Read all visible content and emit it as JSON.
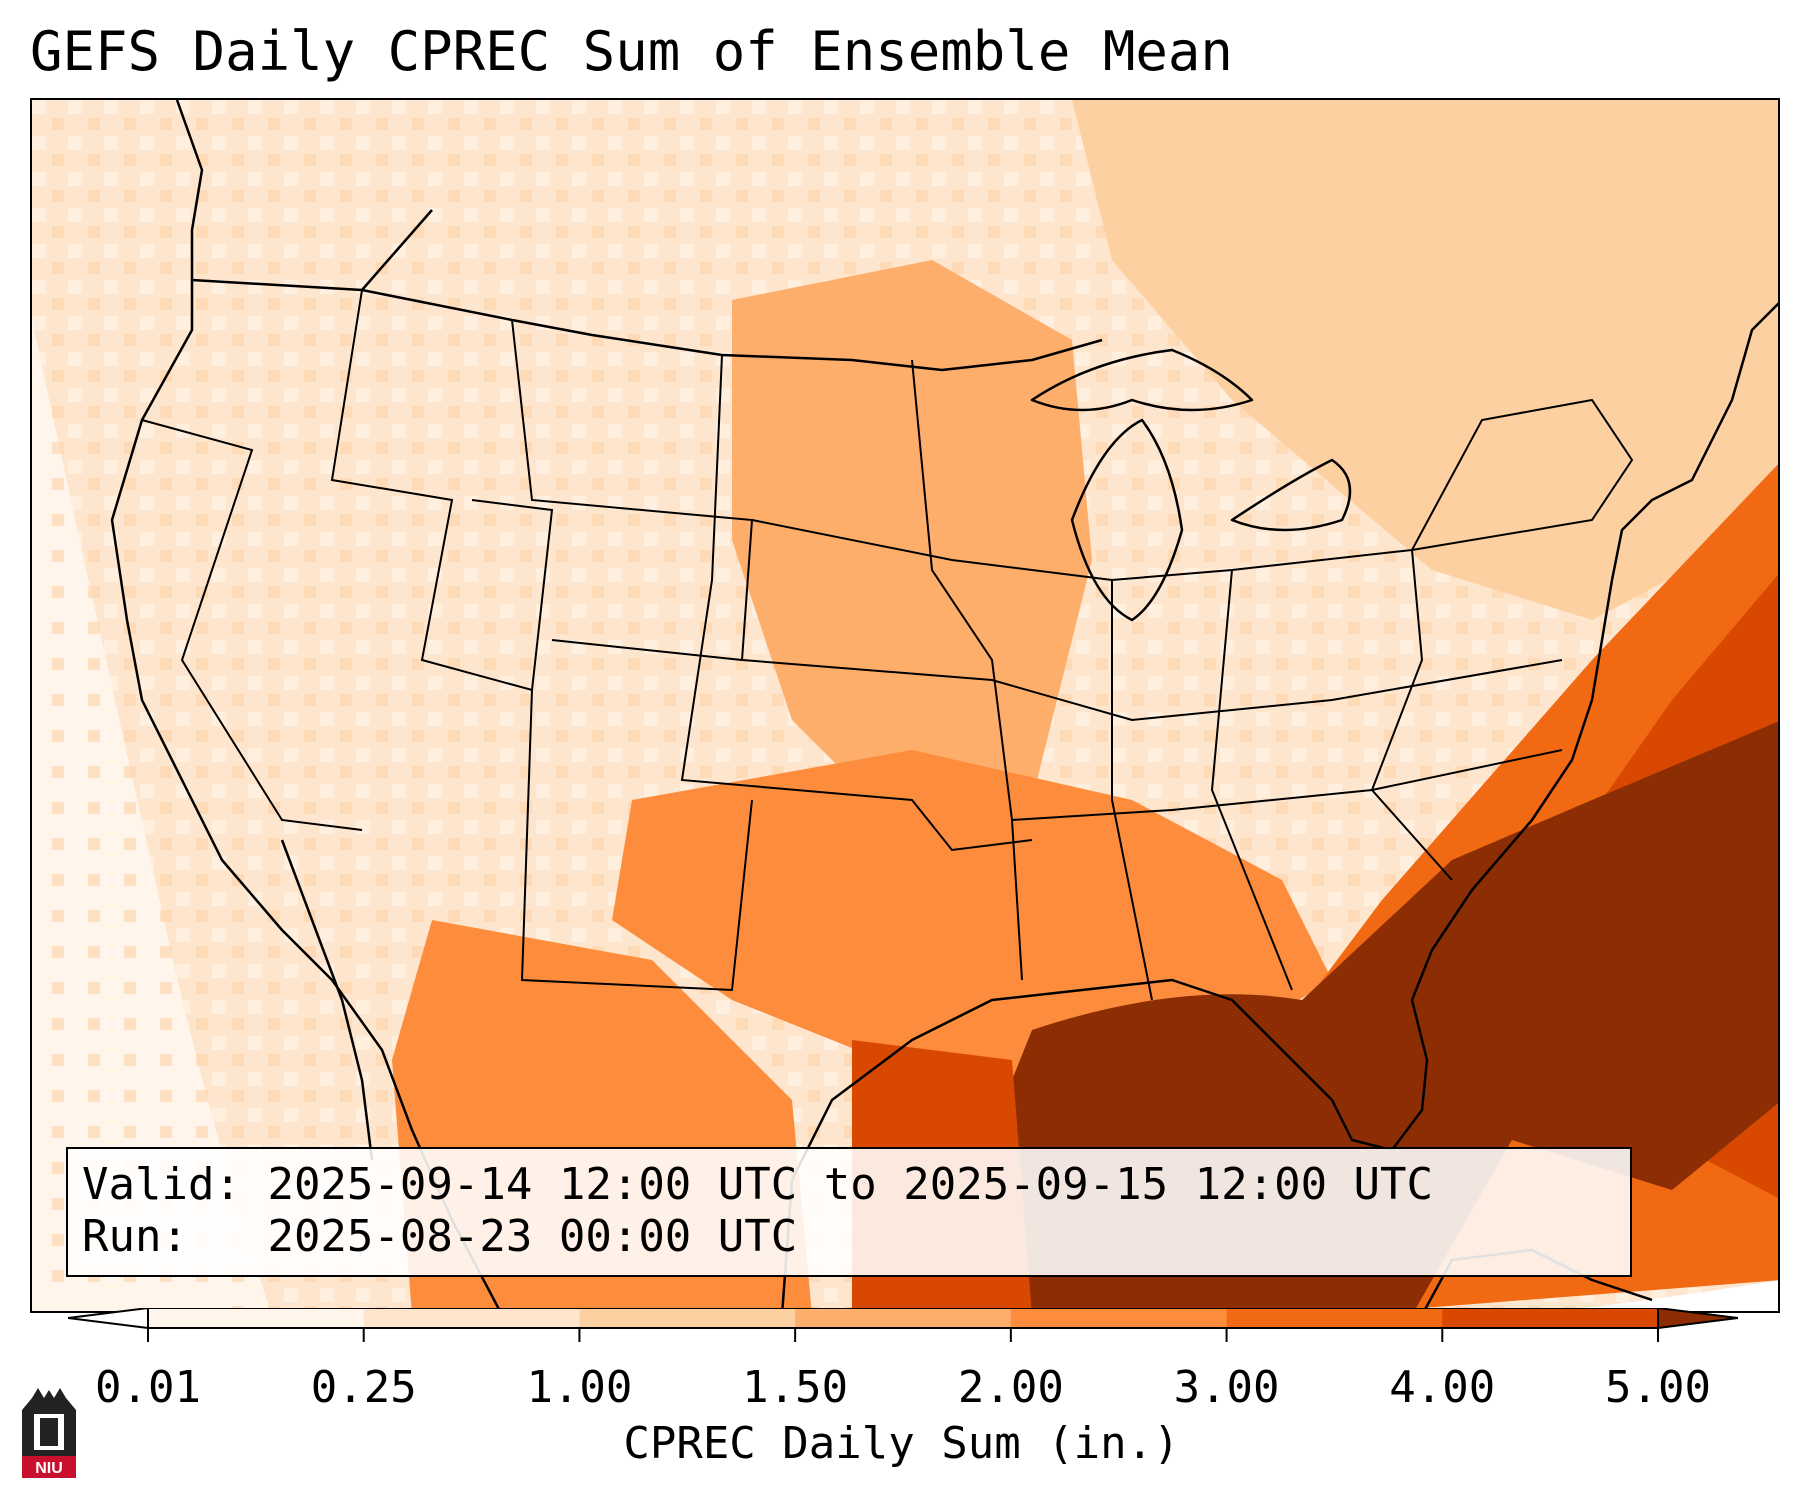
{
  "title": "GEFS Daily CPREC Sum of Ensemble Mean",
  "info": {
    "valid_label": "Valid:",
    "valid_value": "2025-09-14 12:00 UTC to 2025-09-15 12:00 UTC",
    "run_label": "Run:",
    "run_value": "2025-08-23 00:00 UTC"
  },
  "colorbar": {
    "label": "CPREC Daily Sum (in.)",
    "ticks": [
      "0.01",
      "0.25",
      "1.00",
      "1.50",
      "2.00",
      "3.00",
      "4.00",
      "5.00"
    ],
    "bins": [
      {
        "from": "0.01",
        "to": "0.25",
        "color": "#fff5eb"
      },
      {
        "from": "0.25",
        "to": "1.00",
        "color": "#fee6ce"
      },
      {
        "from": "1.00",
        "to": "1.50",
        "color": "#fdd0a2"
      },
      {
        "from": "1.50",
        "to": "2.00",
        "color": "#fdae6b"
      },
      {
        "from": "2.00",
        "to": "3.00",
        "color": "#fd8d3c"
      },
      {
        "from": "3.00",
        "to": "4.00",
        "color": "#f16913"
      },
      {
        "from": "4.00",
        "to": "5.00",
        "color": "#d94801"
      }
    ],
    "under_color": "#ffffff",
    "over_color": "#8c2d04"
  },
  "logo": {
    "text": "NIU",
    "color": "#c8102e"
  }
}
